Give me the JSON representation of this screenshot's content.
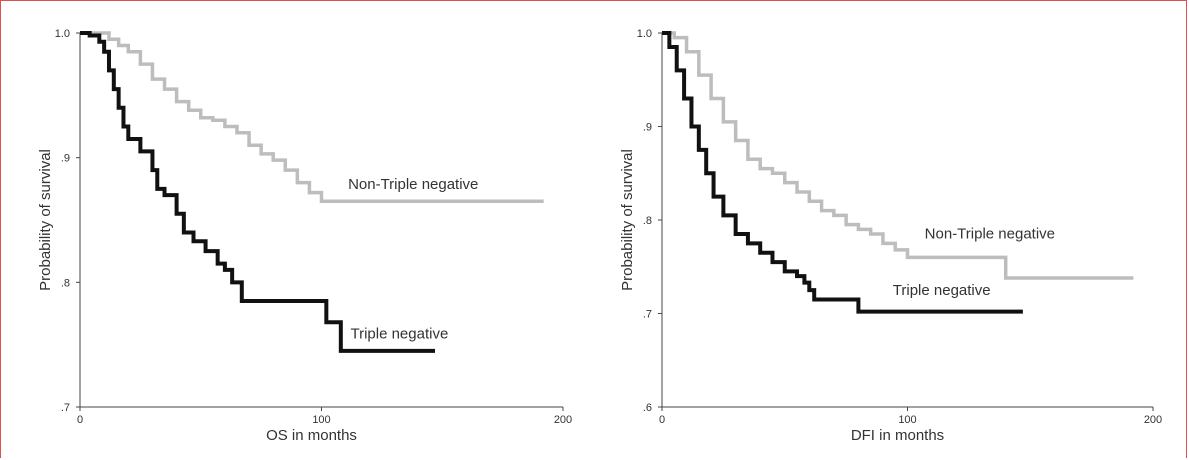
{
  "chart_data": [
    {
      "type": "line",
      "xlabel": "OS in months",
      "ylabel": "Probability of survival",
      "xlim": [
        0,
        200
      ],
      "ylim": [
        0.7,
        1.0
      ],
      "x_ticks": [
        "0",
        "100",
        "200"
      ],
      "y_ticks": [
        ".7",
        ".8",
        ".9",
        "1.0"
      ],
      "y_tick_values": [
        0.7,
        0.8,
        0.9,
        1.0
      ],
      "x_tick_values": [
        0,
        100,
        200
      ],
      "series": [
        {
          "name": "Non-Triple negative",
          "color": "#bdbdbd",
          "label_at": [
            111,
            0.875
          ],
          "points": [
            [
              0,
              1.0
            ],
            [
              8,
              1.0
            ],
            [
              12,
              0.995
            ],
            [
              16,
              0.99
            ],
            [
              20,
              0.985
            ],
            [
              25,
              0.975
            ],
            [
              30,
              0.963
            ],
            [
              35,
              0.955
            ],
            [
              40,
              0.945
            ],
            [
              45,
              0.938
            ],
            [
              50,
              0.932
            ],
            [
              55,
              0.93
            ],
            [
              60,
              0.925
            ],
            [
              65,
              0.92
            ],
            [
              70,
              0.91
            ],
            [
              75,
              0.903
            ],
            [
              80,
              0.898
            ],
            [
              85,
              0.89
            ],
            [
              90,
              0.88
            ],
            [
              95,
              0.872
            ],
            [
              100,
              0.865
            ],
            [
              192,
              0.865
            ]
          ]
        },
        {
          "name": "Triple negative",
          "color": "#111111",
          "label_at": [
            112,
            0.755
          ],
          "points": [
            [
              0,
              1.0
            ],
            [
              4,
              0.998
            ],
            [
              8,
              0.993
            ],
            [
              10,
              0.985
            ],
            [
              12,
              0.97
            ],
            [
              14,
              0.955
            ],
            [
              16,
              0.94
            ],
            [
              18,
              0.925
            ],
            [
              20,
              0.915
            ],
            [
              25,
              0.905
            ],
            [
              30,
              0.89
            ],
            [
              32,
              0.875
            ],
            [
              35,
              0.87
            ],
            [
              40,
              0.855
            ],
            [
              43,
              0.84
            ],
            [
              47,
              0.833
            ],
            [
              52,
              0.825
            ],
            [
              57,
              0.815
            ],
            [
              60,
              0.81
            ],
            [
              63,
              0.8
            ],
            [
              67,
              0.785
            ],
            [
              100,
              0.785
            ],
            [
              102,
              0.768
            ],
            [
              108,
              0.768
            ],
            [
              108,
              0.745
            ],
            [
              147,
              0.745
            ]
          ]
        }
      ]
    },
    {
      "type": "line",
      "xlabel": "DFI in months",
      "ylabel": "Probability of survival",
      "xlim": [
        0,
        200
      ],
      "ylim": [
        0.6,
        1.0
      ],
      "x_ticks": [
        "0",
        "100",
        "200"
      ],
      "y_ticks": [
        ".6",
        ".7",
        ".8",
        ".9",
        "1.0"
      ],
      "y_tick_values": [
        0.6,
        0.7,
        0.8,
        0.9,
        1.0
      ],
      "x_tick_values": [
        0,
        100,
        200
      ],
      "series": [
        {
          "name": "Non-Triple negative",
          "color": "#bdbdbd",
          "label_at": [
            107,
            0.78
          ],
          "points": [
            [
              0,
              1.0
            ],
            [
              5,
              0.995
            ],
            [
              10,
              0.98
            ],
            [
              15,
              0.955
            ],
            [
              20,
              0.93
            ],
            [
              25,
              0.905
            ],
            [
              30,
              0.885
            ],
            [
              35,
              0.865
            ],
            [
              40,
              0.855
            ],
            [
              45,
              0.85
            ],
            [
              50,
              0.84
            ],
            [
              55,
              0.83
            ],
            [
              60,
              0.82
            ],
            [
              65,
              0.81
            ],
            [
              70,
              0.805
            ],
            [
              75,
              0.795
            ],
            [
              80,
              0.79
            ],
            [
              85,
              0.785
            ],
            [
              90,
              0.775
            ],
            [
              95,
              0.768
            ],
            [
              100,
              0.76
            ],
            [
              140,
              0.76
            ],
            [
              140,
              0.738
            ],
            [
              192,
              0.738
            ]
          ]
        },
        {
          "name": "Triple negative",
          "color": "#111111",
          "label_at": [
            94,
            0.72
          ],
          "points": [
            [
              0,
              1.0
            ],
            [
              3,
              0.985
            ],
            [
              6,
              0.96
            ],
            [
              9,
              0.93
            ],
            [
              12,
              0.9
            ],
            [
              15,
              0.875
            ],
            [
              18,
              0.85
            ],
            [
              21,
              0.825
            ],
            [
              25,
              0.805
            ],
            [
              30,
              0.785
            ],
            [
              35,
              0.775
            ],
            [
              40,
              0.765
            ],
            [
              45,
              0.755
            ],
            [
              50,
              0.745
            ],
            [
              55,
              0.74
            ],
            [
              58,
              0.733
            ],
            [
              60,
              0.725
            ],
            [
              62,
              0.715
            ],
            [
              80,
              0.715
            ],
            [
              80,
              0.702
            ],
            [
              147,
              0.702
            ]
          ]
        }
      ]
    }
  ]
}
